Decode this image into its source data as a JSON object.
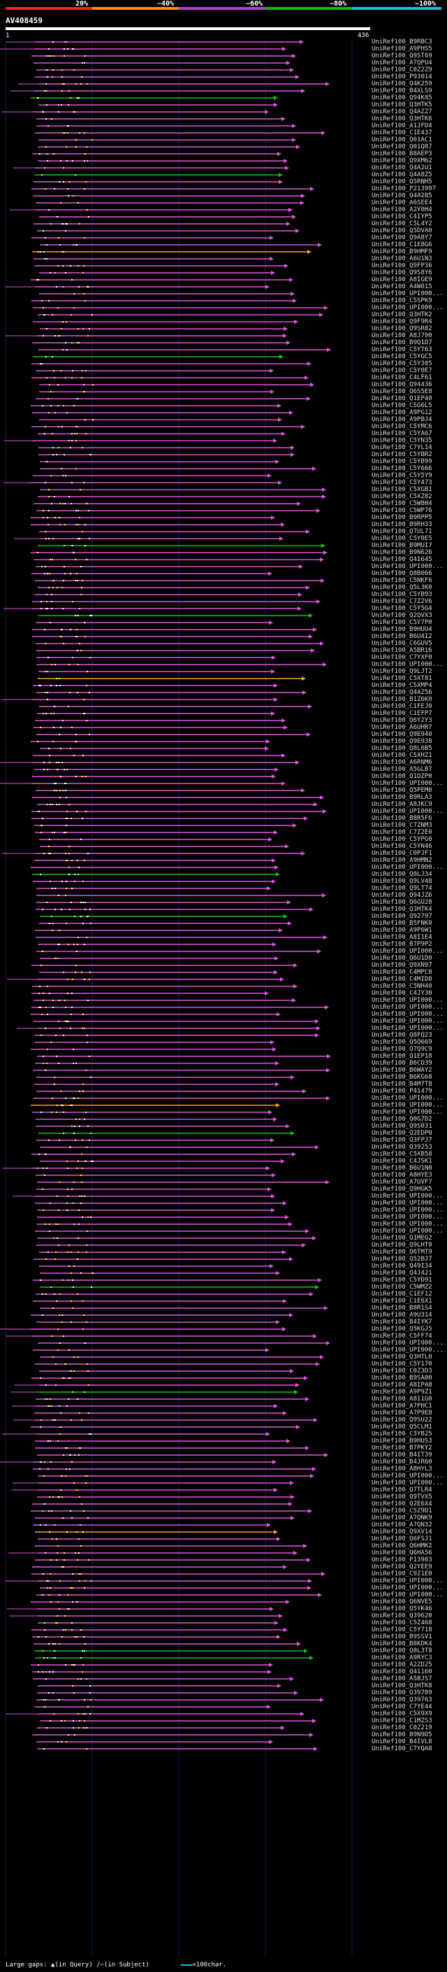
{
  "query": {
    "title": "AV408459",
    "start_label": "1",
    "end_label": "436"
  },
  "scale": {
    "labels": [
      "20%",
      "~40%",
      "~60%",
      "~80%",
      "~100%"
    ],
    "colors": [
      "#ff2020",
      "#ff8a1a",
      "#b040d0",
      "#17b817",
      "#17c0d8"
    ]
  },
  "colors": {
    "hit": "#e055e0",
    "long_hit": "#18c018",
    "short_hit": "#ff9a20",
    "background": "#000000",
    "query_bar": "#ffffff"
  },
  "legend": {
    "large_gaps": "Large gaps:",
    "in_query": "(in Query)",
    "in_subject": "(in Subject)",
    "scale_text": "=100char."
  },
  "hits": [
    "UniRef100_B9RBC3",
    "UniRef100_A9PHS5",
    "UniRef100_Q9ST69",
    "UniRef100_A7QPU4",
    "UniRef100_C0Z2Z9",
    "UniRef100_P93014",
    "UniRef100_Q4K259",
    "UniRef100_B4XLS9",
    "UniRef100_Q94K85",
    "UniRef100_Q3HTK5",
    "UniRef100_Q4AZZ7",
    "UniRef100_Q3HTK6",
    "UniRef100_A1JFD4",
    "UniRef100_C1E437",
    "UniRef100_Q01AC1",
    "UniRef100_Q01Q87",
    "UniRef100_B8AEP3",
    "UniRef100_Q9XM62",
    "UniRef100_Q4A2U1",
    "UniRef100_Q4A8Z5",
    "UniRef100_Q5RNH5",
    "UniRef100_P213997",
    "UniRef100_Q4A2B5",
    "UniRef100_A6SEE4",
    "UniRef100_A2Y0H4",
    "UniRef100_C4IYP5",
    "UniRef100_C5L4Y2",
    "UniRef100_Q5DVA0",
    "UniRef100_Q9A8Y7",
    "UniRef100_C1E8G6",
    "UniRef100_B9HMF9",
    "UniRef100_A6U1N3",
    "UniRef100_Q9FP36",
    "UniRef100_Q9S8Y6",
    "UniRef100_A8IGE9",
    "UniRef100_A4W015",
    "UniRef100_UPI000...",
    "UniRef100_C5SPK9",
    "UniRef100_UPI000...",
    "UniRef100_Q3HTK2",
    "UniRef100_Q9F9R4",
    "UniRef100_Q9SR82",
    "UniRef100_A8J790",
    "UniRef100_B9Q1D7",
    "UniRef100_C5YT63",
    "UniRef100_C5YGC5",
    "UniRef100_C5Y305",
    "UniRef100_C5Y0E7",
    "UniRef100_C4LF61",
    "UniRef100_Q94436",
    "UniRef100_Q6S5E8",
    "UniRef100_Q1EP40",
    "UniRef100_C5G6L5",
    "UniRef100_A9PG12",
    "UniRef100_A9PBJ4",
    "UniRef100_C5YMC6",
    "UniRef100_C5YA67",
    "UniRef100_C5YN35",
    "UniRef100_C7YL14",
    "UniRef100_C5YBR2",
    "UniRef100_C5YB99",
    "UniRef100_C5Y666",
    "UniRef100_C5Y5Y9",
    "UniRef100_C5Y473",
    "UniRef100_C5XGB1",
    "UniRef100_C5XZ82",
    "UniRef100_C5W8H4",
    "UniRef100_C5WP76",
    "UniRef100_B9RPP5",
    "UniRef100_B9RH33",
    "UniRef100_Q7UL71",
    "UniRef100_C5Y0E5",
    "UniRef100_B9MUI7",
    "UniRef100_B9N626",
    "UniRef100_Q4I645",
    "UniRef100_UPI000...",
    "UniRef100_Q8B066",
    "UniRef100_C5NKF6",
    "UniRef100_Q5L3K0",
    "UniRef100_C5YB93",
    "UniRef100_C7Z2V6",
    "UniRef100_C5Y5G4",
    "UniRef100_Q2QVX3",
    "UniRef100_C5Y7P0",
    "UniRef100_B9HUU4",
    "UniRef100_B6U4I2",
    "UniRef100_C6GUV5",
    "UniRef100_A5BR16",
    "UniRef100_C7YXF0",
    "UniRef100_UPI000...",
    "UniRef100_Q9LJT2",
    "UniRef100_C5XT81",
    "UniRef100_C5XMP4",
    "UniRef100_Q4AZ56",
    "UniRef100_B1Z6K0",
    "UniRef100_C1FEJ0",
    "UniRef100_C1EFP7",
    "UniRef100_Q6Y2Y3",
    "UniRef100_A6UHR7",
    "UniRef100_Q9E940",
    "UniRef100_Q9E938",
    "UniRef100_Q8L6B5",
    "UniRef100_C5XHZ1",
    "UniRef100_A6RNM6",
    "UniRef100_A5GLB7",
    "UniRef100_Q1DZP0",
    "UniRef100_UPI000...",
    "UniRef100_Q5PEM0",
    "UniRef100_B9RLA3",
    "UniRef100_A8JKC9",
    "UniRef100_UPI000...",
    "UniRef100_B8R5F6",
    "UniRef100_C7ZNM3",
    "UniRef100_C7Z2E0",
    "UniRef100_C5YPG0",
    "UniRef100_C5YN46",
    "UniRef100_C0PJF1",
    "UniRef100_A9HMN2",
    "UniRef100_UPI000...",
    "UniRef100_Q8LJ34",
    "UniRef100_Q9LV48",
    "UniRef100_Q9LT74",
    "UniRef100_Q94JZ6",
    "UniRef100_Q6GU28",
    "UniRef100_Q3HTK4",
    "UniRef100_Q92797",
    "UniRef100_B5FNK0",
    "UniRef100_A9P6W1",
    "UniRef100_A8I1E4",
    "UniRef100_B7P9P2",
    "UniRef100_UPI000...",
    "UniRef100_Q6U1D0",
    "UniRef100_Q9XN97",
    "UniRef100_C4MPC0",
    "UniRef100_C4MID8",
    "UniRef100_C5NH40",
    "UniRef100_C4JY30",
    "UniRef100_UPI000...",
    "UniRef100_UPI000...",
    "UniRef100_UPI000...",
    "UniRef100_UPI000...",
    "UniRef100_UPI000...",
    "UniRef100_Q8FQ23",
    "UniRef100_Q5Q669",
    "UniRef100_Q7Q9C9",
    "UniRef100_Q1EP18",
    "UniRef100_B6CD39",
    "UniRef100_B6WAY2",
    "UniRef100_B6KG68",
    "UniRef100_B4M7T8",
    "UniRef100_P41479",
    "UniRef100_UPI000...",
    "UniRef100_UPI000...",
    "UniRef100_UPI000...",
    "UniRef100_Q0G7D2",
    "UniRef100_Q9S031",
    "UniRef100_Q2EDP0",
    "UniRef100_Q3FPJ7",
    "UniRef100_Q39253",
    "UniRef100_C5XB58",
    "UniRef100_C4JSK1",
    "UniRef100_B6U1N0",
    "UniRef100_A8HYE3",
    "UniRef100_A7UVF7",
    "UniRef100_Q9HGK5",
    "UniRef100_UPI000...",
    "UniRef100_UPI000...",
    "UniRef100_UPI000...",
    "UniRef100_UPI000...",
    "UniRef100_UPI000...",
    "UniRef100_UPI000...",
    "UniRef100_Q1MEG2",
    "UniRef100_Q9LHT0",
    "UniRef100_Q6TMT9",
    "UniRef100_Q52BJ7",
    "UniRef100_Q49I34",
    "UniRef100_Q4J421",
    "UniRef100_C5YD91",
    "UniRef100_C5WMZ2",
    "UniRef100_C1EF12",
    "UniRef100_C1E6X1",
    "UniRef100_B8R1S4",
    "UniRef100_A9U314",
    "UniRef100_B4IYK7",
    "UniRef100_Q5KGJ5",
    "UniRef100_C5FF74",
    "UniRef100_UPI000...",
    "UniRef100_UPI000...",
    "UniRef100_Q3HTL0",
    "UniRef100_C5Y170",
    "UniRef100_C0Z3D3",
    "UniRef100_B9SA00",
    "UniRef100_A8IPA8",
    "UniRef100_A9P9Z1",
    "UniRef100_A8I1G0",
    "UniRef100_A7PHC1",
    "UniRef100_A7P9E8",
    "UniRef100_Q9SU22",
    "UniRef100_Q5CLM1",
    "UniRef100_C3YB25",
    "UniRef100_B9HUS3",
    "UniRef100_B7PKY2",
    "UniRef100_B4IT39",
    "UniRef100_B4JR60",
    "UniRef100_A8HYL3",
    "UniRef100_UPI000...",
    "UniRef100_UPI000...",
    "UniRef100_Q7TLR4",
    "UniRef100_Q9TVX5",
    "UniRef100_Q2E6X4",
    "UniRef100_C5Z9D1",
    "UniRef100_A7QNK9",
    "UniRef100_A7QN32",
    "UniRef100_Q9XV14",
    "UniRef100_Q6FSJ1",
    "UniRef100_Q6HMK2",
    "UniRef100_Q6HA56",
    "UniRef100_P13983",
    "UniRef100_Q2YEE9",
    "UniRef100_C9Z1E0",
    "UniRef100_UPI000...",
    "UniRef100_UPI000...",
    "UniRef100_UPI000...",
    "UniRef100_Q6NVE5",
    "UniRef100_Q5YK46",
    "UniRef100_Q39620",
    "UniRef100_C5Z468",
    "UniRef100_C5Y718",
    "UniRef100_B9SSV1",
    "UniRef100_B8KDK4",
    "UniRef100_Q8L3T8",
    "UniRef100_A9RYC3",
    "UniRef100_A2ZD25",
    "UniRef100_Q41160",
    "UniRef100_A5BJS7",
    "UniRef100_Q3HTK8",
    "UniRef100_Q39789",
    "UniRef100_Q39763",
    "UniRef100_C7YE44",
    "UniRef100_C5X9X9",
    "UniRef100_C1MZS3",
    "UniRef100_C0Z219",
    "UniRef100_B9N9D5",
    "UniRef100_B4IVL8",
    "UniRef100_C7YQA8"
  ]
}
